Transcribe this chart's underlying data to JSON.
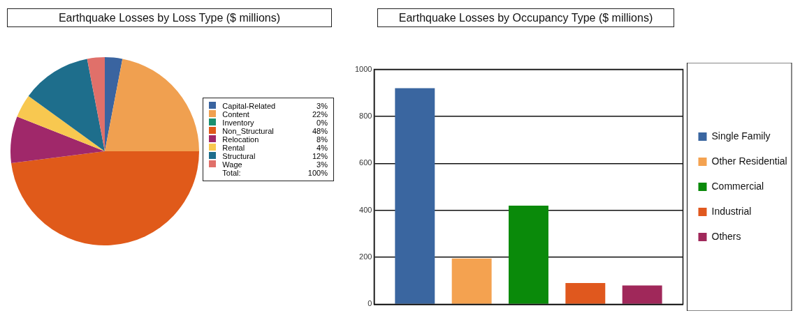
{
  "chart_data": [
    {
      "type": "pie",
      "title": "Earthquake Losses by Loss Type ($ millions)",
      "categories": [
        "Capital-Related",
        "Content",
        "Inventory",
        "Non_Structural",
        "Relocation",
        "Rental",
        "Structural",
        "Wage"
      ],
      "values": [
        3,
        22,
        0,
        48,
        8,
        4,
        12,
        3
      ],
      "colors": [
        "#3a64a0",
        "#f0a050",
        "#1a9070",
        "#e05a1a",
        "#a0286a",
        "#f8c850",
        "#1e6e8c",
        "#e0706a"
      ],
      "value_labels": [
        "3%",
        "22%",
        "0%",
        "48%",
        "8%",
        "4%",
        "12%",
        "3%"
      ],
      "annotations": [
        "Total:",
        "100%"
      ],
      "legend": "right"
    },
    {
      "type": "bar",
      "title": "Earthquake Losses by Occupancy Type ($ millions)",
      "categories": [
        null
      ],
      "series": [
        {
          "name": "Single Family",
          "color": "#3a66a0",
          "values": [
            920
          ]
        },
        {
          "name": "Other Residential",
          "color": "#f4a250",
          "values": [
            195
          ]
        },
        {
          "name": "Commercial",
          "color": "#0a8a0a",
          "values": [
            420
          ]
        },
        {
          "name": "Industrial",
          "color": "#e0581e",
          "values": [
            90
          ]
        },
        {
          "name": "Others",
          "color": "#a0285a",
          "values": [
            80
          ]
        }
      ],
      "ylim": [
        0,
        1000
      ],
      "yticks": [
        0,
        200,
        400,
        600,
        800,
        1000
      ],
      "grid": "y",
      "tick_labels": "y",
      "legend": "right"
    }
  ]
}
